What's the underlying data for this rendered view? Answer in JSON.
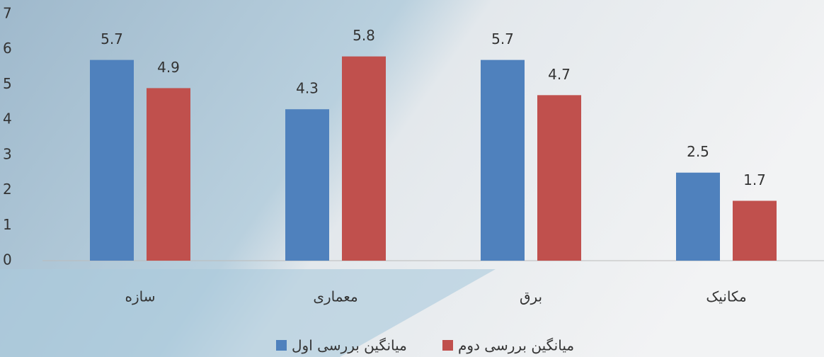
{
  "chart_data": {
    "type": "bar",
    "categories": [
      "سازه",
      "معماری",
      "برق",
      "مکانیک"
    ],
    "series": [
      {
        "name": "میانگین بررسی اول",
        "color": "#4f81bd",
        "values": [
          5.7,
          4.3,
          5.7,
          2.5
        ]
      },
      {
        "name": "میانگین بررسی دوم",
        "color": "#c0504d",
        "values": [
          4.9,
          5.8,
          4.7,
          1.7
        ]
      }
    ],
    "ylim": [
      0,
      7
    ],
    "yticks": [
      0,
      1,
      2,
      3,
      4,
      5,
      6,
      7
    ],
    "grid": false
  }
}
